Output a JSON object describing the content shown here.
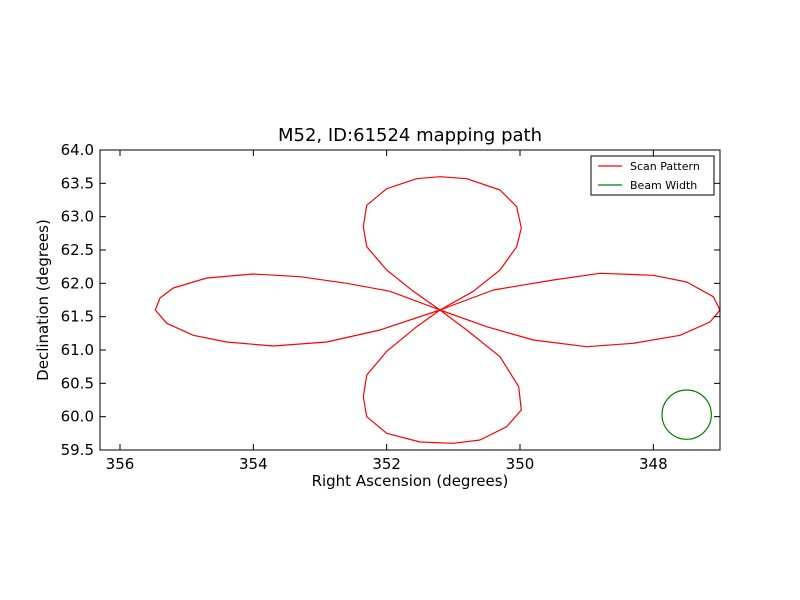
{
  "chart_data": {
    "type": "line",
    "title": "M52, ID:61524 mapping path",
    "xlabel": "Right Ascension (degrees)",
    "ylabel": "Declination (degrees)",
    "xlim": [
      356.3,
      347.0
    ],
    "ylim": [
      59.5,
      64.0
    ],
    "x_ticks": [
      356,
      354,
      352,
      350,
      348
    ],
    "x_tick_labels": [
      "356",
      "354",
      "352",
      "350",
      "348"
    ],
    "y_ticks": [
      59.5,
      60.0,
      60.5,
      61.0,
      61.5,
      62.0,
      62.5,
      63.0,
      63.5,
      64.0
    ],
    "y_tick_labels": [
      "59.5",
      "60.0",
      "60.5",
      "61.0",
      "61.5",
      "62.0",
      "62.5",
      "63.0",
      "63.5",
      "64.0"
    ],
    "grid": false,
    "legend_position": "top-right",
    "series": [
      {
        "name": "Scan Pattern",
        "color": "#ff0000",
        "points": [
          [
            351.2,
            61.6
          ],
          [
            351.95,
            61.88
          ],
          [
            352.6,
            62.0
          ],
          [
            353.3,
            62.1
          ],
          [
            354.0,
            62.14
          ],
          [
            354.7,
            62.08
          ],
          [
            355.2,
            61.93
          ],
          [
            355.4,
            61.78
          ],
          [
            355.47,
            61.6
          ],
          [
            355.3,
            61.4
          ],
          [
            354.9,
            61.22
          ],
          [
            354.4,
            61.12
          ],
          [
            353.7,
            61.06
          ],
          [
            352.9,
            61.12
          ],
          [
            352.1,
            61.3
          ],
          [
            351.2,
            61.6
          ],
          [
            350.7,
            61.88
          ],
          [
            350.3,
            62.2
          ],
          [
            350.05,
            62.55
          ],
          [
            349.98,
            62.83
          ],
          [
            350.05,
            63.15
          ],
          [
            350.3,
            63.4
          ],
          [
            350.8,
            63.57
          ],
          [
            351.2,
            63.6
          ],
          [
            351.55,
            63.57
          ],
          [
            352.0,
            63.42
          ],
          [
            352.3,
            63.17
          ],
          [
            352.35,
            62.85
          ],
          [
            352.3,
            62.55
          ],
          [
            352.0,
            62.2
          ],
          [
            351.6,
            61.88
          ],
          [
            351.2,
            61.6
          ],
          [
            350.4,
            61.9
          ],
          [
            349.5,
            62.05
          ],
          [
            348.8,
            62.15
          ],
          [
            348.0,
            62.12
          ],
          [
            347.5,
            62.02
          ],
          [
            347.1,
            61.8
          ],
          [
            347.0,
            61.6
          ],
          [
            347.15,
            61.42
          ],
          [
            347.6,
            61.22
          ],
          [
            348.3,
            61.1
          ],
          [
            349.0,
            61.05
          ],
          [
            349.8,
            61.15
          ],
          [
            350.5,
            61.35
          ],
          [
            351.2,
            61.6
          ],
          [
            351.55,
            61.35
          ],
          [
            352.0,
            60.98
          ],
          [
            352.3,
            60.62
          ],
          [
            352.35,
            60.3
          ],
          [
            352.3,
            60.0
          ],
          [
            352.0,
            59.75
          ],
          [
            351.5,
            59.62
          ],
          [
            351.0,
            59.6
          ],
          [
            350.6,
            59.65
          ],
          [
            350.2,
            59.85
          ],
          [
            349.98,
            60.1
          ],
          [
            350.02,
            60.45
          ],
          [
            350.3,
            60.9
          ],
          [
            350.8,
            61.3
          ],
          [
            351.2,
            61.6
          ]
        ]
      },
      {
        "name": "Beam Width",
        "color": "#008000",
        "shape": "circle",
        "center": [
          347.5,
          60.03
        ],
        "radius_deg": 0.37
      }
    ]
  }
}
